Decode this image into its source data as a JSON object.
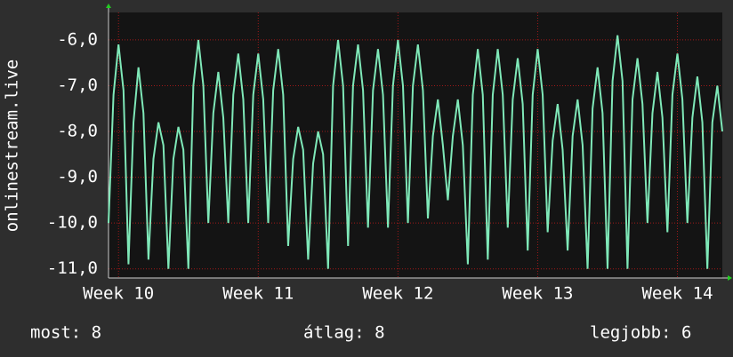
{
  "chart_data": {
    "type": "line",
    "y_label": "onlinestream.live",
    "series": [
      {
        "name": "onlinestream.live",
        "color": "#7fe8b8",
        "values": [
          -10,
          -7.2,
          -6.1,
          -7.1,
          -10.9,
          -7.8,
          -6.6,
          -7.6,
          -10.8,
          -8.6,
          -7.8,
          -8.3,
          -11,
          -8.6,
          -7.9,
          -8.4,
          -11,
          -7,
          -6,
          -7,
          -10,
          -7.6,
          -6.7,
          -7.7,
          -10,
          -7.2,
          -6.3,
          -7.3,
          -10,
          -7.2,
          -6.3,
          -7.3,
          -10,
          -7.1,
          -6.2,
          -7.2,
          -10.5,
          -8.6,
          -7.9,
          -8.4,
          -10.8,
          -8.7,
          -8,
          -8.5,
          -11,
          -7,
          -6,
          -7,
          -10.5,
          -7,
          -6.1,
          -7.1,
          -10.1,
          -7.1,
          -6.2,
          -7.2,
          -10.1,
          -7,
          -6,
          -7,
          -10,
          -7,
          -6.1,
          -7.1,
          -9.9,
          -8.1,
          -7.3,
          -8.3,
          -9.5,
          -8.1,
          -7.3,
          -8.3,
          -10.9,
          -7.2,
          -6.2,
          -7.2,
          -10.8,
          -7.2,
          -6.2,
          -7.2,
          -10.1,
          -7.3,
          -6.4,
          -7.4,
          -10.6,
          -7.2,
          -6.2,
          -7.2,
          -10.2,
          -8.2,
          -7.4,
          -8.4,
          -10.6,
          -8.1,
          -7.3,
          -8.3,
          -11,
          -7.5,
          -6.6,
          -7.6,
          -11,
          -6.9,
          -5.9,
          -6.9,
          -11,
          -7.3,
          -6.4,
          -7.4,
          -10,
          -7.6,
          -6.7,
          -7.7,
          -10.2,
          -7.2,
          -6.3,
          -7.3,
          -10,
          -7.7,
          -6.8,
          -7.8,
          -11,
          -7.8,
          -7,
          -8
        ]
      }
    ],
    "xlim": [
      0,
      123
    ],
    "xticks": [
      {
        "value": 2,
        "label": "Week 10"
      },
      {
        "value": 30,
        "label": "Week 11"
      },
      {
        "value": 58,
        "label": "Week 12"
      },
      {
        "value": 86,
        "label": "Week 13"
      },
      {
        "value": 114,
        "label": "Week 14"
      }
    ],
    "ylim": [
      -11.2,
      -5.4
    ],
    "yticks": [
      {
        "value": -11,
        "label": "-11,0"
      },
      {
        "value": -10,
        "label": "-10,0"
      },
      {
        "value": -9,
        "label": "-9,0"
      },
      {
        "value": -8,
        "label": "-8,0"
      },
      {
        "value": -7,
        "label": "-7,0"
      },
      {
        "value": -6,
        "label": "-6,0"
      }
    ],
    "grid": true,
    "footer": [
      "most: 8",
      "átlag: 8",
      "legjobb: 6"
    ]
  }
}
